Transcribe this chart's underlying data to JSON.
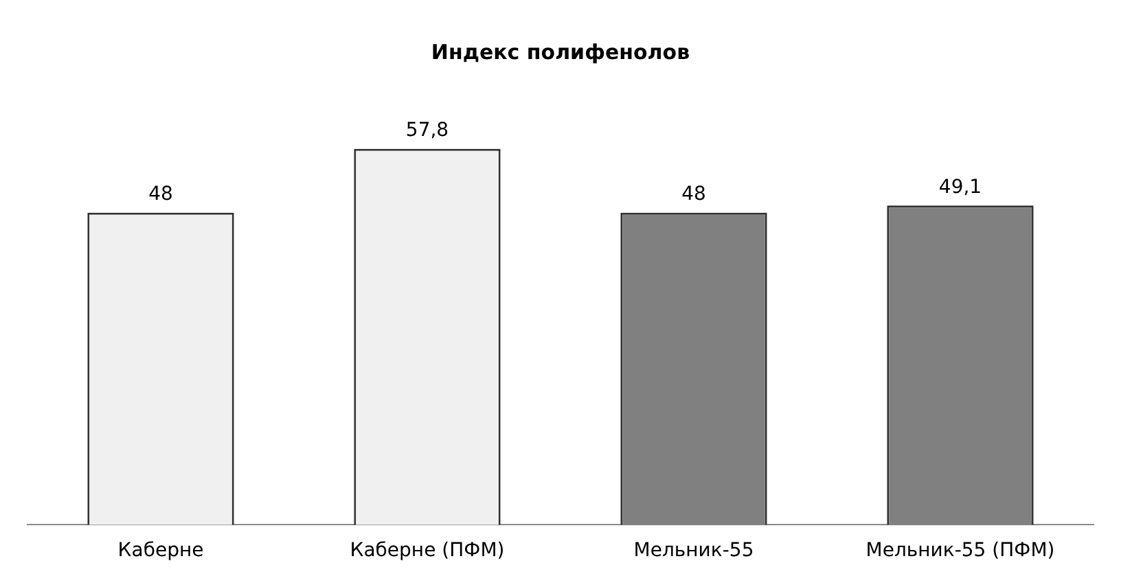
{
  "chart_data": {
    "type": "bar",
    "title": "Индекс полифенолов",
    "categories": [
      "Каберне",
      "Каберне (ПФМ)",
      "Мельник-55",
      "Мельник-55 (ПФМ)"
    ],
    "values": [
      48,
      57.8,
      48,
      49.1
    ],
    "colors": [
      "#f0f0f0",
      "#f0f0f0",
      "#808080",
      "#808080"
    ],
    "value_labels": [
      "48",
      "57,8",
      "48",
      "49,1"
    ],
    "grid": false,
    "legend": false
  }
}
